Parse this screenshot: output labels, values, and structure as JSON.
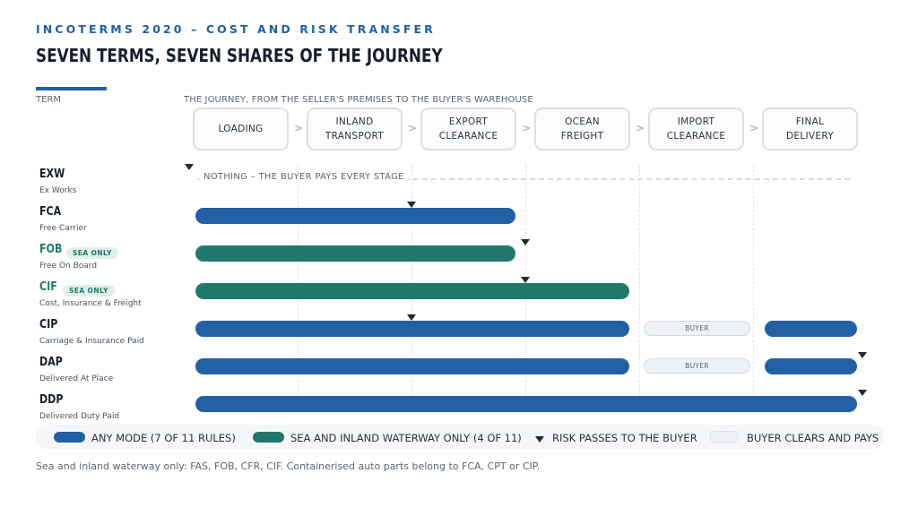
{
  "header": {
    "eyebrow": "INCOTERMS 2020 – COST AND RISK TRANSFER",
    "title": "SEVEN TERMS, SEVEN SHARES OF THE JOURNEY"
  },
  "column_heads": {
    "term": "TERM",
    "journey": "THE JOURNEY, FROM THE SELLER'S PREMISES TO THE BUYER'S WAREHOUSE"
  },
  "stages": [
    {
      "line1": "LOADING",
      "line2": ""
    },
    {
      "line1": "INLAND",
      "line2": "TRANSPORT"
    },
    {
      "line1": "EXPORT",
      "line2": "CLEARANCE"
    },
    {
      "line1": "OCEAN",
      "line2": "FREIGHT"
    },
    {
      "line1": "IMPORT",
      "line2": "CLEARANCE"
    },
    {
      "line1": "FINAL",
      "line2": "DELIVERY"
    }
  ],
  "stage_separator": ">",
  "terms": [
    {
      "code": "EXW",
      "name": "Ex Works",
      "sea_only": false,
      "note": "NOTHING – THE BUYER PAYS EVERY STAGE",
      "risk_at": 0
    },
    {
      "code": "FCA",
      "name": "Free Carrier",
      "sea_only": false,
      "risk_at": 2
    },
    {
      "code": "FOB",
      "name": "Free On Board",
      "sea_only": true,
      "badge": "SEA ONLY",
      "risk_at": 3
    },
    {
      "code": "CIF",
      "name": "Cost, Insurance & Freight",
      "sea_only": true,
      "badge": "SEA ONLY",
      "risk_at": 3
    },
    {
      "code": "CIP",
      "name": "Carriage & Insurance Paid",
      "sea_only": false,
      "buyer_label": "BUYER",
      "risk_at": 2
    },
    {
      "code": "DAP",
      "name": "Delivered At Place",
      "sea_only": false,
      "buyer_label": "BUYER",
      "risk_at": 6
    },
    {
      "code": "DDP",
      "name": "Delivered Duty Paid",
      "sea_only": false,
      "risk_at": 6
    }
  ],
  "legend": {
    "any_mode": "ANY MODE  (7 OF 11 RULES)",
    "sea_only": "SEA AND INLAND WATERWAY ONLY  (4 OF 11)",
    "risk": "RISK PASSES TO THE BUYER",
    "buyer": "BUYER CLEARS AND PAYS"
  },
  "footnote": "Sea and inland waterway only: FAS, FOB, CFR, CIF. Containerised auto parts belong to FCA, CPT or CIP.",
  "colors": {
    "any_mode": "#2160a3",
    "sea_only": "#20786a",
    "risk_marker": "#222a33",
    "buyer_pill": "#eef1f5"
  }
}
